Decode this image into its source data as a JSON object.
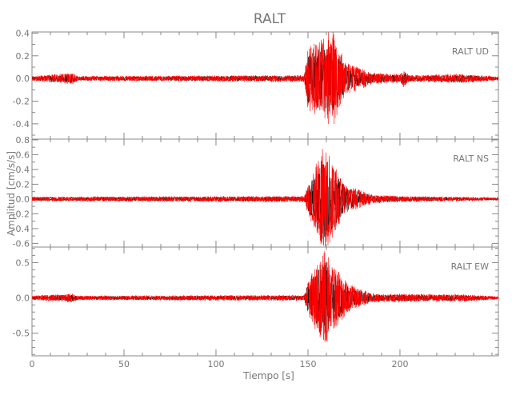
{
  "chart_data": {
    "type": "line",
    "title": "RALT",
    "xlabel": "Tiempo [s]",
    "ylabel": "Amplitud [cm/s/s]",
    "xlim": [
      0,
      253.5
    ],
    "xticks": [
      0,
      50,
      100,
      150,
      200
    ],
    "x_minor_step": 10,
    "grid": false,
    "colors": {
      "trace": "#ff0000",
      "trace_under": "#000000",
      "axis": "#888888",
      "text": "#777777"
    },
    "panels": [
      {
        "label": "RALT   UD",
        "ylim": [
          -0.535,
          0.41
        ],
        "yticks": [
          0.4,
          0.2,
          0.0,
          -0.2,
          -0.4
        ],
        "tick_labels": [
          "0.4",
          "0.2",
          "0.0",
          "-0.2",
          "-0.4"
        ],
        "y_minor_step": 0.1,
        "envelope": [
          [
            0,
            0.02
          ],
          [
            22,
            0.05
          ],
          [
            25,
            0.02
          ],
          [
            148,
            0.03
          ],
          [
            150,
            0.28
          ],
          [
            160,
            0.38
          ],
          [
            163,
            0.45
          ],
          [
            170,
            0.15
          ],
          [
            185,
            0.05
          ],
          [
            200,
            0.04
          ],
          [
            202,
            0.08
          ],
          [
            205,
            0.03
          ],
          [
            235,
            0.04
          ],
          [
            253,
            0.015
          ]
        ]
      },
      {
        "label": "RALT   NS",
        "ylim": [
          -0.65,
          0.81
        ],
        "yticks": [
          0.8,
          0.6,
          0.4,
          0.2,
          0.0,
          -0.2,
          -0.4,
          -0.6
        ],
        "tick_labels": [
          "0.8",
          "0.6",
          "0.4",
          "0.2",
          "0.0",
          "-0.2",
          "-0.4",
          "-0.6"
        ],
        "y_minor_step": 0.1,
        "envelope": [
          [
            0,
            0.03
          ],
          [
            148,
            0.04
          ],
          [
            150,
            0.2
          ],
          [
            158,
            0.7
          ],
          [
            162,
            0.6
          ],
          [
            170,
            0.2
          ],
          [
            185,
            0.06
          ],
          [
            200,
            0.04
          ],
          [
            253,
            0.02
          ]
        ]
      },
      {
        "label": "RALT   EW",
        "ylim": [
          -0.82,
          0.72
        ],
        "yticks": [
          0.5,
          0.0,
          -0.5
        ],
        "tick_labels": [
          "0.5",
          "0.0",
          "-0.5"
        ],
        "y_minor_step": 0.1,
        "envelope": [
          [
            0,
            0.03
          ],
          [
            22,
            0.06
          ],
          [
            25,
            0.03
          ],
          [
            148,
            0.04
          ],
          [
            150,
            0.25
          ],
          [
            159,
            0.7
          ],
          [
            163,
            0.5
          ],
          [
            172,
            0.2
          ],
          [
            185,
            0.06
          ],
          [
            235,
            0.05
          ],
          [
            253,
            0.02
          ]
        ]
      }
    ]
  }
}
